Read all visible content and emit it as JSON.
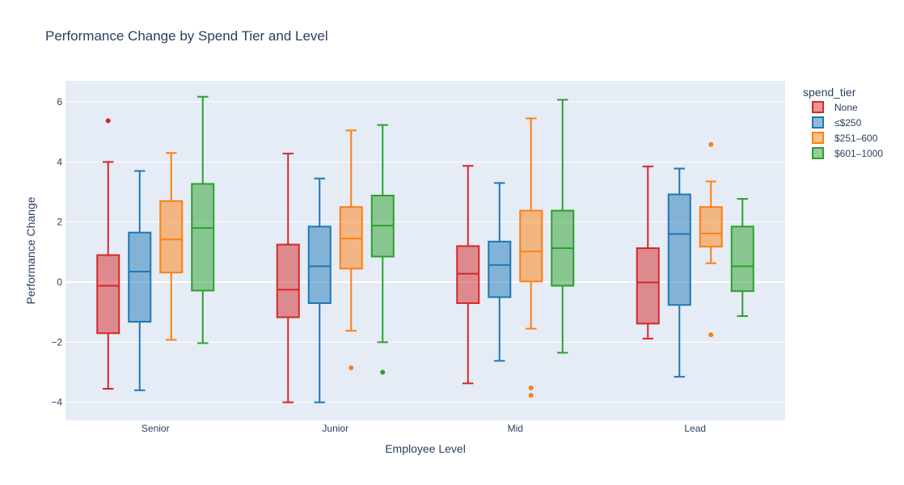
{
  "chart_data": {
    "type": "box",
    "title": "Performance Change by Spend Tier and Level",
    "xlabel": "Employee Level",
    "ylabel": "Performance Change",
    "categories": [
      "Senior",
      "Junior",
      "Mid",
      "Lead"
    ],
    "ylim": [
      -4.6,
      6.7
    ],
    "yticks": [
      -4,
      -2,
      0,
      2,
      4,
      6
    ],
    "legend": {
      "title": "spend_tier",
      "placement": "top-right"
    },
    "grid": true,
    "series": [
      {
        "name": "None",
        "color": "#d62728",
        "boxes": [
          {
            "min": -3.55,
            "q1": -1.7,
            "median": -0.12,
            "q3": 0.9,
            "max": 4.0,
            "outliers": [
              5.37
            ]
          },
          {
            "min": -4.0,
            "q1": -1.17,
            "median": -0.25,
            "q3": 1.25,
            "max": 4.28,
            "outliers": []
          },
          {
            "min": -3.37,
            "q1": -0.7,
            "median": 0.28,
            "q3": 1.2,
            "max": 3.87,
            "outliers": []
          },
          {
            "min": -1.88,
            "q1": -1.38,
            "median": -0.01,
            "q3": 1.13,
            "max": 3.85,
            "outliers": []
          }
        ]
      },
      {
        "name": "≤$250",
        "color": "#1f77b4",
        "boxes": [
          {
            "min": -3.6,
            "q1": -1.32,
            "median": 0.35,
            "q3": 1.65,
            "max": 3.7,
            "outliers": []
          },
          {
            "min": -4.0,
            "q1": -0.7,
            "median": 0.53,
            "q3": 1.85,
            "max": 3.45,
            "outliers": []
          },
          {
            "min": -2.62,
            "q1": -0.5,
            "median": 0.57,
            "q3": 1.35,
            "max": 3.3,
            "outliers": []
          },
          {
            "min": -3.15,
            "q1": -0.76,
            "median": 1.6,
            "q3": 2.92,
            "max": 3.78,
            "outliers": []
          }
        ]
      },
      {
        "name": "$251–600",
        "color": "#ff7f0e",
        "boxes": [
          {
            "min": -1.92,
            "q1": 0.32,
            "median": 1.42,
            "q3": 2.7,
            "max": 4.3,
            "outliers": []
          },
          {
            "min": -1.62,
            "q1": 0.45,
            "median": 1.45,
            "q3": 2.5,
            "max": 5.05,
            "outliers": [
              -2.85
            ]
          },
          {
            "min": -1.55,
            "q1": 0.02,
            "median": 1.02,
            "q3": 2.38,
            "max": 5.45,
            "outliers": [
              -3.52,
              -3.77
            ]
          },
          {
            "min": 0.63,
            "q1": 1.18,
            "median": 1.62,
            "q3": 2.5,
            "max": 3.35,
            "outliers": [
              4.58,
              -1.75
            ]
          }
        ]
      },
      {
        "name": "$601–1000",
        "color": "#2ca02c",
        "boxes": [
          {
            "min": -2.03,
            "q1": -0.28,
            "median": 1.8,
            "q3": 3.27,
            "max": 6.17,
            "outliers": []
          },
          {
            "min": -2.0,
            "q1": 0.85,
            "median": 1.88,
            "q3": 2.88,
            "max": 5.23,
            "outliers": [
              -3.0
            ]
          },
          {
            "min": -2.35,
            "q1": -0.12,
            "median": 1.13,
            "q3": 2.38,
            "max": 6.07,
            "outliers": []
          },
          {
            "min": -1.13,
            "q1": -0.3,
            "median": 0.53,
            "q3": 1.85,
            "max": 2.77,
            "outliers": []
          }
        ]
      }
    ]
  }
}
